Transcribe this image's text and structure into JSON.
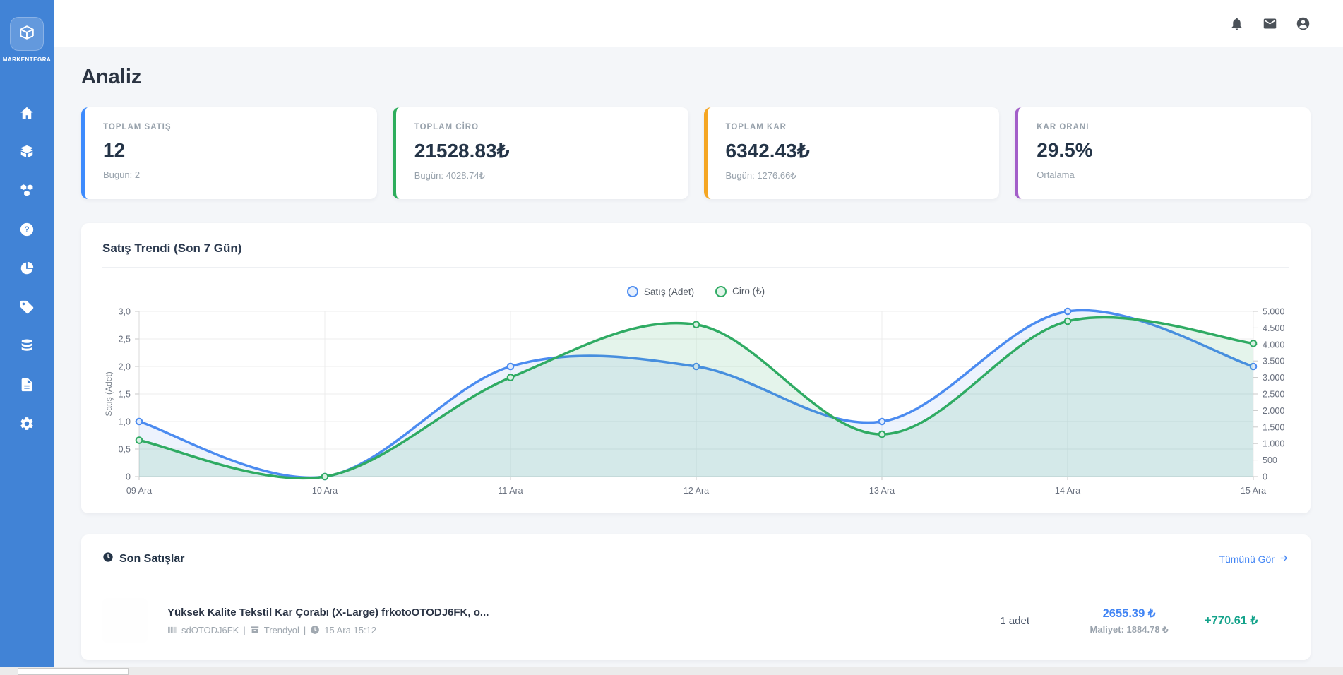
{
  "brand": {
    "name": "MARKENTEGRA",
    "logo_icon": "cube-logo-icon"
  },
  "header": {
    "icons": [
      {
        "icon": "bell-icon",
        "name": "notifications"
      },
      {
        "icon": "envelope-icon",
        "name": "messages"
      },
      {
        "icon": "user-circle-icon",
        "name": "account"
      }
    ]
  },
  "sidebar": {
    "items": [
      {
        "icon": "home-icon",
        "name": "home"
      },
      {
        "icon": "package-icon",
        "name": "package"
      },
      {
        "icon": "cubes-icon",
        "name": "cubes"
      },
      {
        "icon": "help-icon",
        "name": "help"
      },
      {
        "icon": "pie-chart-icon",
        "name": "pie-chart"
      },
      {
        "icon": "tag-icon",
        "name": "tag"
      },
      {
        "icon": "database-icon",
        "name": "database"
      },
      {
        "icon": "document-icon",
        "name": "document"
      },
      {
        "icon": "settings-icon",
        "name": "settings"
      }
    ]
  },
  "page": {
    "title": "Analiz"
  },
  "stats": [
    {
      "label": "TOPLAM SATIŞ",
      "value": "12",
      "sub": "Bugün: 2",
      "accent": "#3d8bfd"
    },
    {
      "label": "TOPLAM CİRO",
      "value": "21528.83₺",
      "sub": "Bugün: 4028.74₺",
      "accent": "#2dad5c"
    },
    {
      "label": "TOPLAM KAR",
      "value": "6342.43₺",
      "sub": "Bugün: 1276.66₺",
      "accent": "#f5a623"
    },
    {
      "label": "KAR ORANI",
      "value": "29.5%",
      "sub": "Ortalama",
      "accent": "#a35fc9"
    }
  ],
  "chart_card": {
    "title": "Satış Trendi (Son 7 Gün)"
  },
  "chart_data": {
    "type": "line",
    "title": "Satış Trendi (Son 7 Gün)",
    "x": [
      "09 Ara",
      "10 Ara",
      "11 Ara",
      "12 Ara",
      "13 Ara",
      "14 Ara",
      "15 Ara"
    ],
    "series": [
      {
        "name": "Satış (Adet)",
        "axis": "left",
        "color": "#4b8bf0",
        "fill_opacity": 0.1,
        "values": [
          1,
          0,
          2,
          2,
          1,
          3,
          2
        ]
      },
      {
        "name": "Ciro (₺)",
        "axis": "right",
        "color": "#2fab63",
        "fill_opacity": 0.13,
        "values": [
          1100,
          0,
          3000,
          4600,
          1280,
          4700,
          4030
        ]
      }
    ],
    "left_axis": {
      "label": "Satış (Adet)",
      "min": 0,
      "max": 3,
      "step": 0.5,
      "tick_labels": [
        "0",
        "0,5",
        "1,0",
        "1,5",
        "2,0",
        "2,5",
        "3,0"
      ]
    },
    "right_axis": {
      "label": "Ciro (₺)",
      "min": 0,
      "max": 5000,
      "step": 500,
      "tick_labels": [
        "0",
        "500",
        "1.000",
        "1.500",
        "2.000",
        "2.500",
        "3.000",
        "3.500",
        "4.000",
        "4.500",
        "5.000"
      ]
    },
    "grid": true,
    "legend_position": "top",
    "smooth": true
  },
  "recent_sales": {
    "title": "Son Satışlar",
    "title_icon": "clock-icon",
    "view_all_label": "Tümünü Gör",
    "view_all_icon": "arrow-right-icon",
    "items": [
      {
        "product_name": "Yüksek Kalite Tekstil Kar Çorabı (X-Large) frkotoOTODJ6FK, o...",
        "sku": "sdOTODJ6FK",
        "sku_icon": "barcode-icon",
        "marketplace": "Trendyol",
        "marketplace_icon": "store-icon",
        "datetime": "15 Ara 15:12",
        "datetime_icon": "clock-icon",
        "separator": "|",
        "quantity": "1 adet",
        "price": "2655.39 ₺",
        "cost": "Maliyet: 1884.78 ₺",
        "profit": "+770.61 ₺",
        "price_color": "#4285f4",
        "profit_color": "#14a38b"
      }
    ]
  }
}
